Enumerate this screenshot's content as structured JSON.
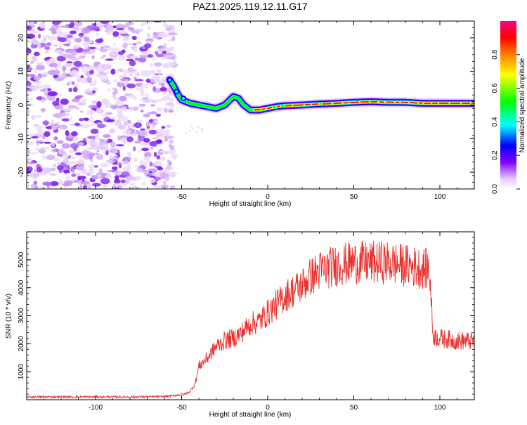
{
  "title": "PAZ1.2025.119.12.11.G17",
  "chart_data": [
    {
      "type": "heatmap",
      "xlabel": "Height of straight line (km)",
      "ylabel": "Frequency (Hz)",
      "xlim": [
        -140,
        120
      ],
      "ylim": [
        -25,
        25
      ],
      "x_ticks": [
        -100,
        -50,
        0,
        50,
        100
      ],
      "y_ticks": [
        -20,
        -10,
        0,
        10,
        20
      ],
      "colorbar": {
        "label": "Normalized spectral amplitude",
        "range": [
          0,
          1
        ],
        "ticks": [
          "0.0",
          "0.2",
          "0.4",
          "0.6",
          "0.8"
        ],
        "colormap": [
          "#ffffff",
          "#d8b4f8",
          "#8000ff",
          "#0000ff",
          "#00ffff",
          "#00ff00",
          "#ffff00",
          "#ff8000",
          "#ff0000",
          "#ff0080"
        ]
      },
      "ridge": {
        "x": [
          -57,
          -55,
          -52,
          -50,
          -45,
          -40,
          -35,
          -30,
          -25,
          -20,
          -17,
          -14,
          -10,
          -5,
          0,
          5,
          10,
          20,
          30,
          40,
          50,
          60,
          70,
          80,
          90,
          100,
          110,
          120
        ],
        "y": [
          7.5,
          6,
          3,
          1.5,
          0.5,
          0,
          -0.5,
          -1,
          0,
          2.5,
          2,
          0,
          -1.5,
          -1.5,
          -1,
          -0.5,
          -0.2,
          0,
          0.3,
          0.5,
          0.8,
          1,
          0.8,
          0.8,
          0.5,
          0.5,
          0.5,
          0.5
        ]
      },
      "noise_region_x": [
        -140,
        -50
      ]
    },
    {
      "type": "line",
      "xlabel": "Height of straight line (km)",
      "ylabel": "SNR (10 * v/v)",
      "xlim": [
        -140,
        120
      ],
      "ylim": [
        0,
        6000
      ],
      "x_ticks": [
        -100,
        -50,
        0,
        50,
        100
      ],
      "y_ticks": [
        1000,
        2000,
        3000,
        4000,
        5000
      ],
      "color": "#e8302c",
      "series": [
        {
          "x": [
            -140,
            -120,
            -100,
            -80,
            -60,
            -48,
            -45,
            -42,
            -40,
            -35,
            -30,
            -25,
            -20,
            -15,
            -10,
            -5,
            0,
            5,
            10,
            15,
            20,
            25,
            30,
            35,
            40,
            50,
            60,
            70,
            80,
            90,
            94,
            96,
            100,
            110,
            120
          ],
          "y": [
            100,
            100,
            100,
            100,
            110,
            200,
            300,
            600,
            1200,
            1500,
            1900,
            2100,
            2200,
            2400,
            2700,
            2800,
            3100,
            3400,
            3700,
            3900,
            4100,
            4400,
            4600,
            4700,
            4800,
            4900,
            4900,
            4900,
            4800,
            4700,
            4650,
            2300,
            2200,
            2100,
            2100
          ]
        }
      ]
    }
  ]
}
